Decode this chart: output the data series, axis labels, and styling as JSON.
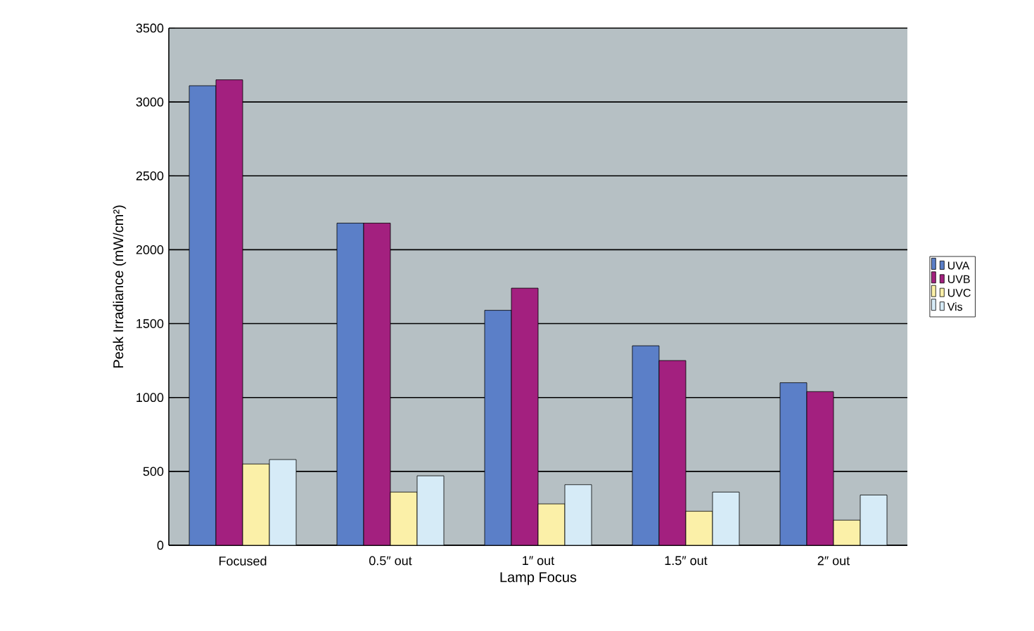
{
  "chart_data": {
    "type": "bar",
    "xlabel": "Lamp Focus",
    "ylabel": "Peak Irradiance (mW/cm²)",
    "categories": [
      "Focused",
      "0.5″ out",
      "1″ out",
      "1.5″ out",
      "2″ out"
    ],
    "series": [
      {
        "name": "UVA",
        "color": "#5b7fc8",
        "values": [
          3110,
          2180,
          1590,
          1350,
          1100
        ]
      },
      {
        "name": "UVB",
        "color": "#a3207f",
        "values": [
          3150,
          2180,
          1740,
          1250,
          1040
        ]
      },
      {
        "name": "UVC",
        "color": "#fbf0a8",
        "values": [
          550,
          360,
          280,
          230,
          170
        ]
      },
      {
        "name": "Vis",
        "color": "#d6ebf7",
        "values": [
          580,
          470,
          410,
          360,
          340
        ]
      }
    ],
    "ylim": [
      0,
      3500
    ],
    "yticks": [
      0,
      500,
      1000,
      1500,
      2000,
      2500,
      3000,
      3500
    ],
    "grid": "y",
    "legend": "right"
  }
}
